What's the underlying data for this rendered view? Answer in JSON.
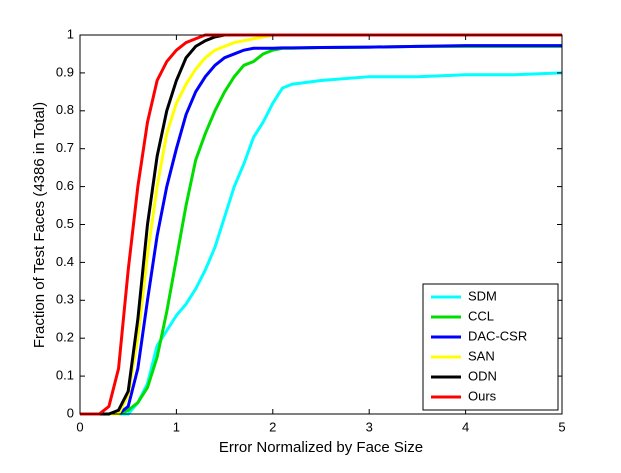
{
  "chart_data": {
    "type": "line",
    "xlabel": "Error Normalized by Face Size",
    "ylabel": "Fraction of Test Faces (4386 in Total)",
    "x": [
      0,
      0.2,
      0.3,
      0.4,
      0.5,
      0.6,
      0.7,
      0.8,
      0.9,
      1.0,
      1.1,
      1.2,
      1.3,
      1.4,
      1.5,
      1.6,
      1.7,
      1.8,
      1.9,
      2.0,
      2.1,
      2.2,
      2.5,
      3.0,
      3.5,
      4.0,
      4.5,
      5.0
    ],
    "series": [
      {
        "name": "SDM",
        "color": "#00ffff",
        "values": [
          0,
          0,
          0,
          0,
          0,
          0.03,
          0.08,
          0.18,
          0.22,
          0.26,
          0.29,
          0.33,
          0.38,
          0.44,
          0.52,
          0.6,
          0.66,
          0.73,
          0.77,
          0.82,
          0.86,
          0.87,
          0.88,
          0.89,
          0.89,
          0.895,
          0.895,
          0.9
        ]
      },
      {
        "name": "CCL",
        "color": "#00dd00",
        "values": [
          0,
          0,
          0,
          0,
          0.01,
          0.03,
          0.07,
          0.15,
          0.27,
          0.41,
          0.55,
          0.67,
          0.74,
          0.8,
          0.85,
          0.89,
          0.92,
          0.93,
          0.95,
          0.96,
          0.965,
          0.965,
          0.967,
          0.968,
          0.97,
          0.97,
          0.97,
          0.97
        ]
      },
      {
        "name": "DAC-CSR",
        "color": "#0000ff",
        "values": [
          0,
          0,
          0,
          0,
          0.02,
          0.12,
          0.3,
          0.47,
          0.6,
          0.7,
          0.79,
          0.85,
          0.89,
          0.92,
          0.94,
          0.95,
          0.96,
          0.965,
          0.965,
          0.965,
          0.966,
          0.966,
          0.967,
          0.968,
          0.97,
          0.972,
          0.972,
          0.972
        ]
      },
      {
        "name": "SAN",
        "color": "#ffff00",
        "values": [
          0,
          0,
          0,
          0,
          0.05,
          0.2,
          0.42,
          0.6,
          0.74,
          0.82,
          0.87,
          0.91,
          0.94,
          0.96,
          0.97,
          0.98,
          0.985,
          0.99,
          0.995,
          1,
          1,
          1,
          1,
          1,
          1,
          1,
          1,
          1
        ]
      },
      {
        "name": "ODN",
        "color": "#000000",
        "values": [
          0,
          0,
          0,
          0.01,
          0.06,
          0.25,
          0.5,
          0.68,
          0.8,
          0.88,
          0.94,
          0.97,
          0.985,
          0.995,
          1,
          1,
          1,
          1,
          1,
          1,
          1,
          1,
          1,
          1,
          1,
          1,
          1,
          1
        ]
      },
      {
        "name": "Ours",
        "color": "#ff0000",
        "values": [
          0,
          0,
          0.02,
          0.12,
          0.38,
          0.6,
          0.77,
          0.88,
          0.93,
          0.96,
          0.98,
          0.99,
          1,
          1,
          1,
          1,
          1,
          1,
          1,
          1,
          1,
          1,
          1,
          1,
          1,
          1,
          1,
          1
        ]
      }
    ],
    "xlim": [
      0,
      5
    ],
    "xticks": [
      0,
      1,
      2,
      3,
      4,
      5
    ],
    "ylim": [
      0,
      1
    ],
    "yticks": [
      0,
      0.1,
      0.2,
      0.3,
      0.4,
      0.5,
      0.6,
      0.7,
      0.8,
      0.9,
      1
    ],
    "grid": false,
    "legend": "lower right"
  }
}
